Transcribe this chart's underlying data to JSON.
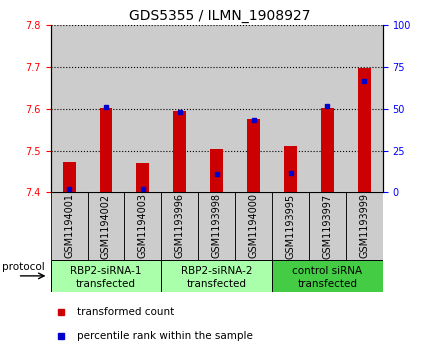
{
  "title": "GDS5355 / ILMN_1908927",
  "samples": [
    "GSM1194001",
    "GSM1194002",
    "GSM1194003",
    "GSM1193996",
    "GSM1193998",
    "GSM1194000",
    "GSM1193995",
    "GSM1193997",
    "GSM1193999"
  ],
  "red_values": [
    7.472,
    7.602,
    7.47,
    7.595,
    7.505,
    7.577,
    7.512,
    7.602,
    7.698
  ],
  "blue_values": [
    7.408,
    7.604,
    7.407,
    7.592,
    7.443,
    7.574,
    7.446,
    7.606,
    7.668
  ],
  "y_min": 7.4,
  "y_max": 7.8,
  "y_ticks": [
    7.4,
    7.5,
    7.6,
    7.7,
    7.8
  ],
  "y2_ticks": [
    0,
    25,
    50,
    75,
    100
  ],
  "legend_red": "transformed count",
  "legend_blue": "percentile rank within the sample",
  "bar_color": "#cc0000",
  "dot_color": "#0000cc",
  "col_bg": "#cccccc",
  "group_defs": [
    {
      "indices": [
        0,
        1,
        2
      ],
      "label1": "RBP2-siRNA-1",
      "label2": "transfected",
      "color": "#aaffaa"
    },
    {
      "indices": [
        3,
        4,
        5
      ],
      "label1": "RBP2-siRNA-2",
      "label2": "transfected",
      "color": "#aaffaa"
    },
    {
      "indices": [
        6,
        7,
        8
      ],
      "label1": "control siRNA",
      "label2": "transfected",
      "color": "#44cc44"
    }
  ],
  "title_fontsize": 10,
  "tick_fontsize": 7,
  "label_fontsize": 7.5
}
